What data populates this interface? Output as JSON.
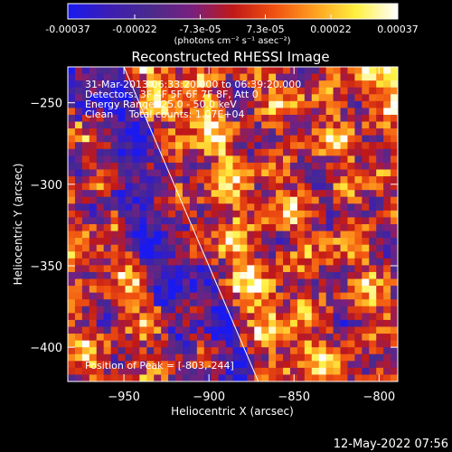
{
  "chart_data": {
    "type": "heatmap",
    "title": "Reconstructed RHESSI Image",
    "colorbar": {
      "tick_labels": [
        "-0.00037",
        "-0.00022",
        "-7.3e-05",
        "7.3e-05",
        "0.00022",
        "0.00037"
      ],
      "range": [
        -0.00037,
        0.00037
      ],
      "unit_label": "(photons cm⁻² s⁻¹ asec⁻²)",
      "colormap": [
        "#1a1af0",
        "#3c1eb4",
        "#4a2a8c",
        "#782080",
        "#c01818",
        "#f05010",
        "#ffa020",
        "#fff040",
        "#ffffff"
      ]
    },
    "info_lines": [
      "31-Mar-2013 06:33:20.000 to 06:39:20.000",
      "Detectors: 3F 4F 5F 6F 7F 8F, Att 0",
      "Energy Range: 25.0 - 50.0 keV",
      "Clean     Total counts: 1.07E+04"
    ],
    "peak_label": "Position of Peak = [-803,-244]",
    "xlabel": "Heliocentric X (arcsec)",
    "ylabel": "Heliocentric Y (arcsec)",
    "x_ticks": [
      -950,
      -900,
      -850,
      -800
    ],
    "y_ticks": [
      -250,
      -300,
      -350,
      -400
    ],
    "xlim": [
      -983,
      -789
    ],
    "ylim": [
      -421,
      -228
    ],
    "limb_line": [
      [
        -950,
        -228
      ],
      [
        -871,
        -421
      ]
    ],
    "peak": [
      -803,
      -244
    ],
    "grid": false,
    "legend": "none"
  },
  "footer": {
    "timestamp": "12-May-2022 07:56"
  }
}
